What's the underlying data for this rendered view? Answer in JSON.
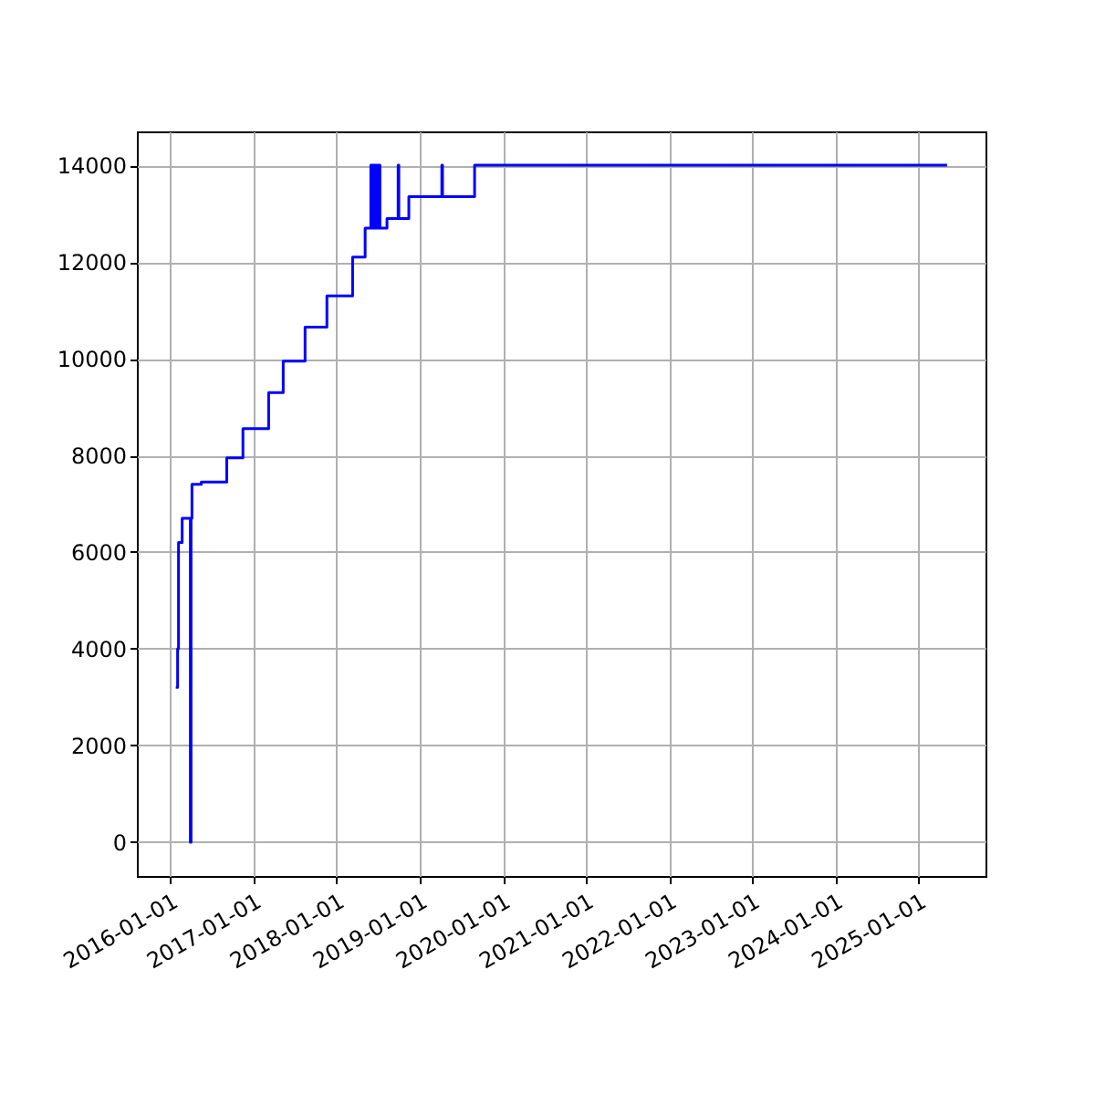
{
  "chart_data": {
    "type": "step",
    "color": "#0000ff",
    "grid": true,
    "x": [
      "2016-01-25",
      "2016-02-02",
      "2016-02-06",
      "2016-02-22",
      "2016-03-29",
      "2016-04-01",
      "2016-04-05",
      "2016-05-16",
      "2016-09-05",
      "2016-11-15",
      "2017-03-08",
      "2017-05-11",
      "2017-08-15",
      "2017-11-19",
      "2018-03-12",
      "2018-05-06",
      "2018-05-31",
      "2018-06-05",
      "2018-06-10",
      "2018-06-15",
      "2018-06-20",
      "2018-06-25",
      "2018-07-01",
      "2018-07-10",
      "2018-08-10",
      "2018-09-28",
      "2018-10-01",
      "2018-11-14",
      "2019-04-08",
      "2019-04-11",
      "2019-08-30",
      "2025-05-06"
    ],
    "values": [
      3200,
      4000,
      6200,
      6700,
      0,
      6700,
      7400,
      7450,
      7950,
      8550,
      9300,
      9950,
      10650,
      11300,
      12100,
      12700,
      14000,
      12700,
      14000,
      12700,
      14000,
      12700,
      14000,
      12700,
      12900,
      14000,
      12900,
      13350,
      14000,
      13350,
      14000,
      14000
    ],
    "xlim": [
      "2015-08-07",
      "2025-10-22"
    ],
    "xticks": [
      "2016-01-01",
      "2017-01-01",
      "2018-01-01",
      "2019-01-01",
      "2020-01-01",
      "2021-01-01",
      "2022-01-01",
      "2023-01-01",
      "2024-01-01",
      "2025-01-01"
    ],
    "ylim": [
      -700,
      14700
    ],
    "yticks": [
      0,
      2000,
      4000,
      6000,
      8000,
      10000,
      12000,
      14000
    ]
  }
}
